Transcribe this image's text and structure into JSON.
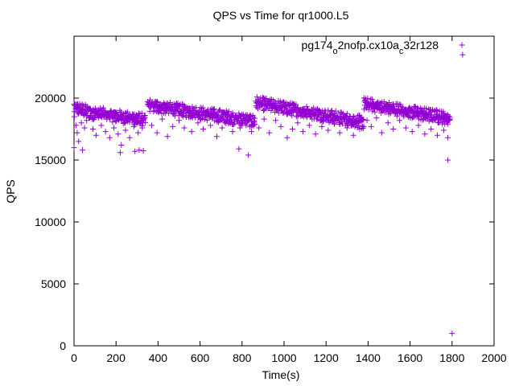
{
  "chart_data": {
    "type": "scatter",
    "title": "QPS vs Time for qr1000.L5",
    "xlabel": "Time(s)",
    "ylabel": "QPS",
    "xlim": [
      0,
      2000
    ],
    "ylim": [
      0,
      25000
    ],
    "xticks": [
      0,
      200,
      400,
      600,
      800,
      1000,
      1200,
      1400,
      1600,
      1800,
      2000
    ],
    "yticks": [
      0,
      5000,
      10000,
      15000,
      20000
    ],
    "grid": false,
    "legend_position": "top-right",
    "marker": "+",
    "color": "#9400d3",
    "series": [
      {
        "name": "pg174_o2nofp.cx10a_c32r128",
        "legend_parts": [
          {
            "t": "pg174",
            "sub": false
          },
          {
            "t": "o",
            "sub": true
          },
          {
            "t": "2nofp.cx10a",
            "sub": false
          },
          {
            "t": "c",
            "sub": true
          },
          {
            "t": "32r128",
            "sub": false
          }
        ],
        "segments": [
          {
            "x": [
              0,
              80
            ],
            "y": [
              19400,
              19000
            ],
            "spread": 350,
            "outliers": [
              [
                2,
                18500
              ],
              [
                10,
                17800
              ],
              [
                15,
                17200
              ],
              [
                22,
                16500
              ],
              [
                35,
                18000
              ],
              [
                50,
                17600
              ],
              [
                60,
                18200
              ],
              [
                75,
                18400
              ]
            ]
          },
          {
            "x": [
              80,
              340
            ],
            "y": [
              19000,
              18400
            ],
            "spread": 350,
            "outliers": [
              [
                90,
                17500
              ],
              [
                105,
                17000
              ],
              [
                130,
                17800
              ],
              [
                150,
                17300
              ],
              [
                170,
                16800
              ],
              [
                190,
                17600
              ],
              [
                210,
                17100
              ],
              [
                225,
                16200
              ],
              [
                245,
                17400
              ],
              [
                265,
                16800
              ],
              [
                285,
                17700
              ],
              [
                305,
                17200
              ],
              [
                325,
                17600
              ]
            ]
          },
          {
            "x": [
              350,
              860
            ],
            "y": [
              19600,
              18300
            ],
            "spread": 350,
            "outliers": [
              [
                370,
                17800
              ],
              [
                395,
                17200
              ],
              [
                420,
                18300
              ],
              [
                445,
                16900
              ],
              [
                470,
                17700
              ],
              [
                500,
                18200
              ],
              [
                525,
                17600
              ],
              [
                560,
                17300
              ],
              [
                590,
                18000
              ],
              [
                615,
                17500
              ],
              [
                650,
                17800
              ],
              [
                680,
                16900
              ],
              [
                705,
                17600
              ],
              [
                730,
                18100
              ],
              [
                755,
                17300
              ],
              [
                790,
                17600
              ],
              [
                815,
                18000
              ],
              [
                845,
                17300
              ]
            ]
          },
          {
            "x": [
              865,
              1380
            ],
            "y": [
              19800,
              18200
            ],
            "spread": 350,
            "outliers": [
              [
                880,
                17600
              ],
              [
                905,
                18300
              ],
              [
                930,
                17200
              ],
              [
                960,
                18200
              ],
              [
                985,
                17700
              ],
              [
                1015,
                16800
              ],
              [
                1040,
                17500
              ],
              [
                1065,
                18000
              ],
              [
                1090,
                17300
              ],
              [
                1120,
                17800
              ],
              [
                1150,
                17100
              ],
              [
                1180,
                17700
              ],
              [
                1210,
                17400
              ],
              [
                1240,
                17900
              ],
              [
                1265,
                17200
              ],
              [
                1300,
                17600
              ],
              [
                1330,
                17000
              ],
              [
                1360,
                17500
              ]
            ]
          },
          {
            "x": [
              1380,
              1790
            ],
            "y": [
              19700,
              18500
            ],
            "spread": 350,
            "outliers": [
              [
                1395,
                18200
              ],
              [
                1415,
                17700
              ],
              [
                1440,
                18400
              ],
              [
                1465,
                17200
              ],
              [
                1495,
                18000
              ],
              [
                1520,
                17500
              ],
              [
                1550,
                18200
              ],
              [
                1580,
                17600
              ],
              [
                1610,
                17300
              ],
              [
                1640,
                17800
              ],
              [
                1670,
                17100
              ],
              [
                1700,
                17500
              ],
              [
                1730,
                17000
              ],
              [
                1760,
                17400
              ],
              [
                1780,
                16800
              ]
            ]
          }
        ],
        "points": [
          [
            0,
            16000
          ],
          [
            40,
            15800
          ],
          [
            220,
            15600
          ],
          [
            290,
            15700
          ],
          [
            310,
            15800
          ],
          [
            330,
            15750
          ],
          [
            785,
            15900
          ],
          [
            830,
            15400
          ],
          [
            1780,
            15000
          ],
          [
            1800,
            1000
          ],
          [
            1850,
            23500
          ],
          [
            1725,
            19050
          ],
          [
            1740,
            18950
          ],
          [
            1760,
            18700
          ],
          [
            1790,
            18300
          ]
        ]
      }
    ]
  }
}
